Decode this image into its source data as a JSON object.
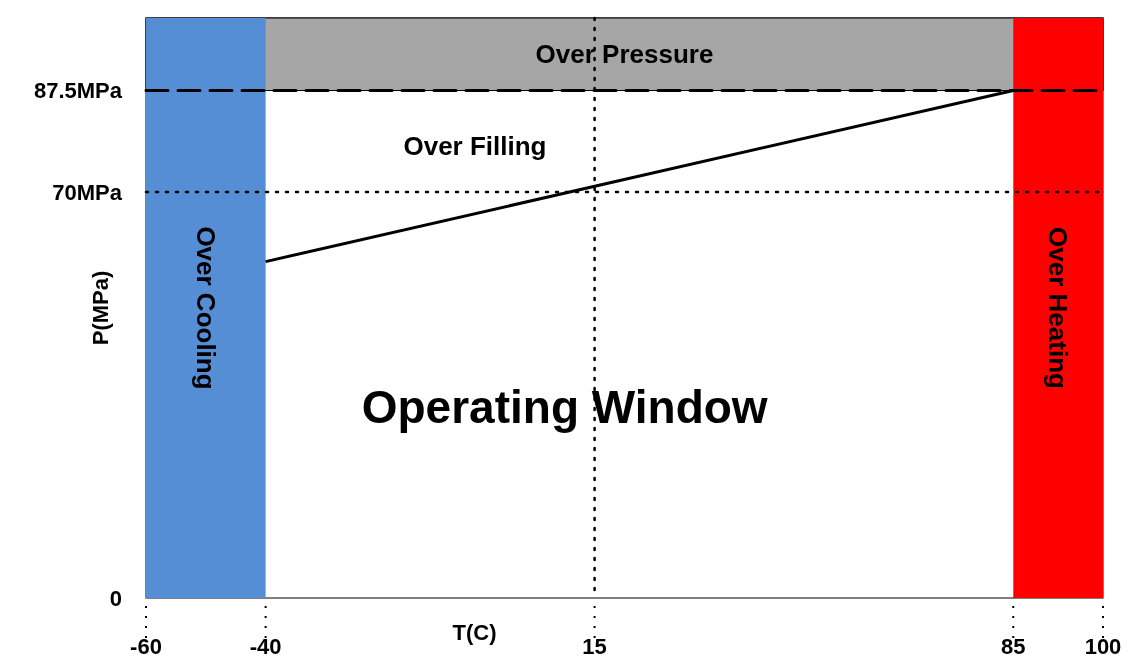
{
  "chart_data": {
    "type": "line",
    "xlabel": "T(C)",
    "ylabel": "P(MPa)",
    "xlim": [
      -60,
      100
    ],
    "xticks": [
      -60,
      -40,
      15,
      85,
      100
    ],
    "ylim": [
      0,
      100
    ],
    "yticks": [
      0,
      {
        "value": 70,
        "label": "70MPa"
      },
      {
        "value": 87.5,
        "label": "87.5MPa"
      }
    ],
    "series": [
      {
        "x": [
          -40,
          85
        ],
        "values": [
          58,
          87.5
        ],
        "color": "#000000"
      }
    ],
    "bands": [
      {
        "axis": "y",
        "from": 87.5,
        "to": 100,
        "label": "Over Pressure",
        "color": "#a6a6a6"
      },
      {
        "axis": "x",
        "from": -60,
        "to": -40,
        "label": "Over Cooling",
        "color": "#558ed5"
      },
      {
        "axis": "x",
        "from": 85,
        "to": 100,
        "label": "Over Heating",
        "color": "#ff0000"
      }
    ],
    "ref_lines": [
      {
        "axis": "y",
        "value": 87.5,
        "line_style": "dashed",
        "color": "#000000"
      },
      {
        "axis": "y",
        "value": 70,
        "line_style": "dotted",
        "color": "#000000"
      },
      {
        "axis": "x",
        "value": 15,
        "line_style": "dotted",
        "color": "#000000"
      }
    ],
    "annotations": [
      "Over Filling",
      "Operating Window"
    ]
  }
}
